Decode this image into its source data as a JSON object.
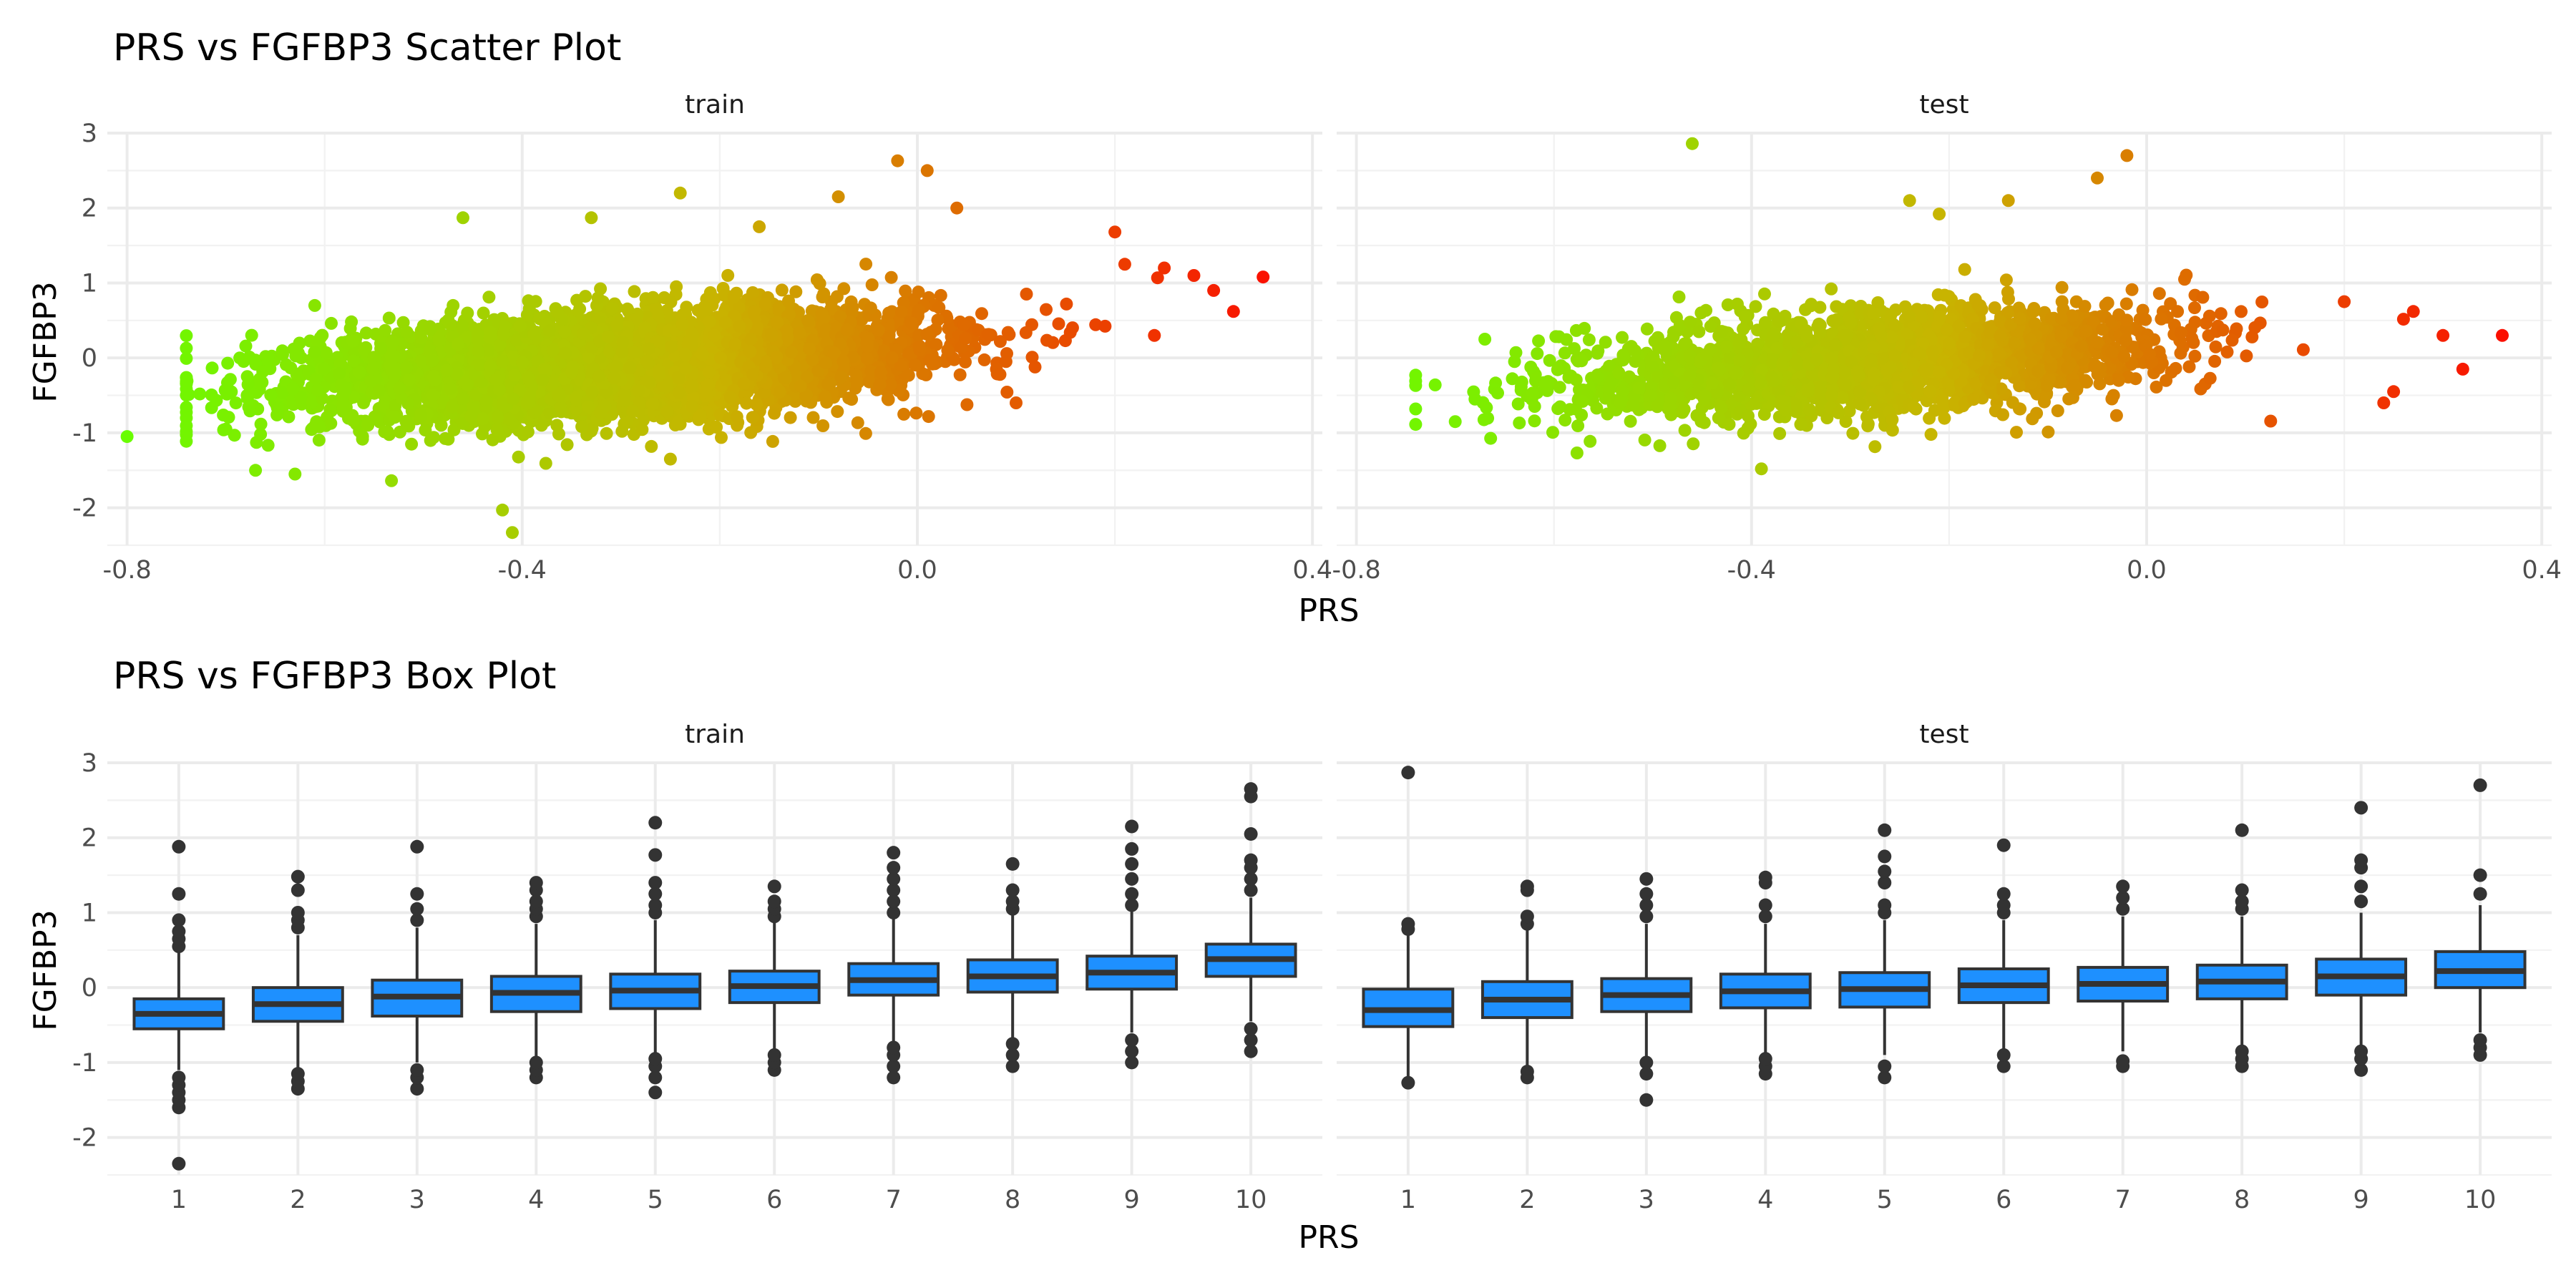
{
  "chart_data": [
    {
      "type": "scatter",
      "title": "PRS vs FGFBP3 Scatter Plot",
      "xlabel": "PRS",
      "ylabel": "FGFBP3",
      "xlim": [
        -0.82,
        0.41
      ],
      "ylim": [
        -2.5,
        3.0
      ],
      "x_ticks": [
        -0.8,
        -0.4,
        0.0,
        0.4
      ],
      "x_tick_labels": [
        "-0.8",
        "-0.4",
        "0.0",
        "0.4"
      ],
      "y_ticks": [
        -2,
        -1,
        0,
        1,
        2,
        3
      ],
      "y_tick_labels": [
        "-2",
        "-1",
        "0",
        "1",
        "2",
        "3"
      ],
      "grid": true,
      "legend": "none",
      "color_gradient": {
        "low": "#66ff00",
        "mid": "#c8b400",
        "high": "#ff0000",
        "encodes": "x"
      },
      "trend": {
        "intercept": 0.16,
        "slope": 0.78
      },
      "panels": [
        {
          "name": "train",
          "n_points": 5200,
          "cloud": {
            "x_mean": -0.3,
            "x_sd": 0.15,
            "y_sd": 0.33
          },
          "points": [
            {
              "x": -0.8,
              "y": -1.05
            },
            {
              "x": -0.74,
              "y": -0.8
            },
            {
              "x": -0.7,
              "y": -0.95
            },
            {
              "x": -0.67,
              "y": -1.5
            },
            {
              "x": -0.63,
              "y": -1.55
            },
            {
              "x": -0.61,
              "y": 0.7
            },
            {
              "x": -0.46,
              "y": 1.87
            },
            {
              "x": -0.41,
              "y": -2.33
            },
            {
              "x": -0.42,
              "y": -2.03
            },
            {
              "x": -0.33,
              "y": 1.87
            },
            {
              "x": -0.24,
              "y": 2.2
            },
            {
              "x": -0.25,
              "y": -1.35
            },
            {
              "x": -0.16,
              "y": 1.75
            },
            {
              "x": -0.08,
              "y": 2.15
            },
            {
              "x": -0.02,
              "y": 2.63
            },
            {
              "x": 0.01,
              "y": 2.5
            },
            {
              "x": 0.04,
              "y": 2.0
            },
            {
              "x": 0.1,
              "y": -0.6
            },
            {
              "x": 0.2,
              "y": 1.68
            },
            {
              "x": 0.21,
              "y": 1.25
            },
            {
              "x": 0.25,
              "y": 1.2
            },
            {
              "x": 0.24,
              "y": 0.3
            },
            {
              "x": 0.28,
              "y": 1.1
            },
            {
              "x": 0.3,
              "y": 0.9
            },
            {
              "x": 0.32,
              "y": 0.62
            },
            {
              "x": 0.35,
              "y": 1.08
            }
          ]
        },
        {
          "name": "test",
          "n_points": 2300,
          "cloud": {
            "x_mean": -0.28,
            "x_sd": 0.15,
            "y_sd": 0.33
          },
          "points": [
            {
              "x": -0.74,
              "y": -0.23
            },
            {
              "x": -0.7,
              "y": -0.85
            },
            {
              "x": -0.68,
              "y": -0.55
            },
            {
              "x": -0.67,
              "y": 0.25
            },
            {
              "x": -0.46,
              "y": 2.86
            },
            {
              "x": -0.39,
              "y": -1.48
            },
            {
              "x": -0.24,
              "y": 2.1
            },
            {
              "x": -0.21,
              "y": 1.92
            },
            {
              "x": -0.14,
              "y": 2.1
            },
            {
              "x": -0.05,
              "y": 2.4
            },
            {
              "x": -0.02,
              "y": 2.7
            },
            {
              "x": 0.2,
              "y": 0.75
            },
            {
              "x": 0.24,
              "y": -0.6
            },
            {
              "x": 0.25,
              "y": -0.45
            },
            {
              "x": 0.27,
              "y": 0.62
            },
            {
              "x": 0.3,
              "y": 0.3
            },
            {
              "x": 0.32,
              "y": -0.15
            },
            {
              "x": 0.36,
              "y": 0.3
            }
          ]
        }
      ]
    },
    {
      "type": "box",
      "title": "PRS vs FGFBP3 Box Plot",
      "xlabel": "PRS",
      "ylabel": "FGFBP3",
      "categories": [
        "1",
        "2",
        "3",
        "4",
        "5",
        "6",
        "7",
        "8",
        "9",
        "10"
      ],
      "ylim": [
        -2.5,
        3.0
      ],
      "y_ticks": [
        -2,
        -1,
        0,
        1,
        2,
        3
      ],
      "y_tick_labels": [
        "-2",
        "-1",
        "0",
        "1",
        "2",
        "3"
      ],
      "grid": true,
      "legend": "none",
      "box_fill": "#1e90ff",
      "box_line": "#333333",
      "panels": [
        {
          "name": "train",
          "boxes": [
            {
              "q1": -0.55,
              "median": -0.35,
              "q3": -0.15,
              "lower": -1.1,
              "upper": 0.5,
              "outliers": [
                -2.35,
                -1.6,
                -1.5,
                -1.4,
                -1.3,
                -1.2,
                0.55,
                0.65,
                0.75,
                0.9,
                1.25,
                1.88
              ]
            },
            {
              "q1": -0.45,
              "median": -0.22,
              "q3": 0.0,
              "lower": -1.1,
              "upper": 0.7,
              "outliers": [
                -1.35,
                -1.25,
                -1.15,
                0.8,
                0.9,
                1.0,
                1.3,
                1.48
              ]
            },
            {
              "q1": -0.38,
              "median": -0.12,
              "q3": 0.1,
              "lower": -1.0,
              "upper": 0.8,
              "outliers": [
                -1.35,
                -1.2,
                -1.1,
                0.9,
                1.05,
                1.25,
                1.88
              ]
            },
            {
              "q1": -0.32,
              "median": -0.07,
              "q3": 0.15,
              "lower": -0.95,
              "upper": 0.85,
              "outliers": [
                -1.2,
                -1.1,
                -1.0,
                0.95,
                1.05,
                1.15,
                1.3,
                1.4
              ]
            },
            {
              "q1": -0.28,
              "median": -0.04,
              "q3": 0.18,
              "lower": -0.9,
              "upper": 0.9,
              "outliers": [
                -1.4,
                -1.2,
                -1.05,
                -0.95,
                1.0,
                1.1,
                1.25,
                1.4,
                1.77,
                2.2
              ]
            },
            {
              "q1": -0.2,
              "median": 0.02,
              "q3": 0.22,
              "lower": -0.85,
              "upper": 0.9,
              "outliers": [
                -1.1,
                -1.0,
                -0.9,
                0.95,
                1.05,
                1.15,
                1.35
              ]
            },
            {
              "q1": -0.1,
              "median": 0.1,
              "q3": 0.32,
              "lower": -0.75,
              "upper": 0.95,
              "outliers": [
                -1.2,
                -1.05,
                -0.9,
                -0.8,
                1.0,
                1.15,
                1.3,
                1.45,
                1.6,
                1.8
              ]
            },
            {
              "q1": -0.06,
              "median": 0.15,
              "q3": 0.37,
              "lower": -0.7,
              "upper": 1.0,
              "outliers": [
                -1.05,
                -0.9,
                -0.75,
                1.05,
                1.15,
                1.3,
                1.65
              ]
            },
            {
              "q1": -0.02,
              "median": 0.2,
              "q3": 0.42,
              "lower": -0.6,
              "upper": 1.05,
              "outliers": [
                -1.0,
                -0.85,
                -0.7,
                1.1,
                1.25,
                1.45,
                1.65,
                1.85,
                2.15
              ]
            },
            {
              "q1": 0.15,
              "median": 0.38,
              "q3": 0.58,
              "lower": -0.45,
              "upper": 1.2,
              "outliers": [
                -0.85,
                -0.7,
                -0.55,
                1.3,
                1.45,
                1.6,
                1.7,
                2.05,
                2.55,
                2.65
              ]
            }
          ]
        },
        {
          "name": "test",
          "boxes": [
            {
              "q1": -0.52,
              "median": -0.3,
              "q3": -0.02,
              "lower": -1.2,
              "upper": 0.7,
              "outliers": [
                -1.27,
                0.78,
                0.85,
                2.87
              ]
            },
            {
              "q1": -0.4,
              "median": -0.16,
              "q3": 0.08,
              "lower": -1.05,
              "upper": 0.8,
              "outliers": [
                -1.2,
                -1.12,
                0.85,
                0.95,
                1.3,
                1.35
              ]
            },
            {
              "q1": -0.32,
              "median": -0.1,
              "q3": 0.12,
              "lower": -0.95,
              "upper": 0.85,
              "outliers": [
                -1.5,
                -1.15,
                -1.0,
                0.95,
                1.1,
                1.25,
                1.45
              ]
            },
            {
              "q1": -0.27,
              "median": -0.05,
              "q3": 0.18,
              "lower": -0.9,
              "upper": 0.85,
              "outliers": [
                -1.15,
                -1.05,
                -0.95,
                0.95,
                1.1,
                1.4,
                1.47
              ]
            },
            {
              "q1": -0.26,
              "median": -0.02,
              "q3": 0.2,
              "lower": -0.9,
              "upper": 0.9,
              "outliers": [
                -1.2,
                -1.05,
                1.0,
                1.1,
                1.4,
                1.55,
                1.75,
                2.1
              ]
            },
            {
              "q1": -0.2,
              "median": 0.03,
              "q3": 0.25,
              "lower": -0.85,
              "upper": 0.9,
              "outliers": [
                -1.05,
                -0.9,
                1.0,
                1.1,
                1.25,
                1.9
              ]
            },
            {
              "q1": -0.18,
              "median": 0.05,
              "q3": 0.27,
              "lower": -0.85,
              "upper": 0.95,
              "outliers": [
                -1.05,
                -0.98,
                1.05,
                1.2,
                1.35
              ]
            },
            {
              "q1": -0.15,
              "median": 0.08,
              "q3": 0.3,
              "lower": -0.8,
              "upper": 0.95,
              "outliers": [
                -1.05,
                -0.95,
                -0.85,
                1.05,
                1.15,
                1.3,
                2.1
              ]
            },
            {
              "q1": -0.1,
              "median": 0.15,
              "q3": 0.38,
              "lower": -0.78,
              "upper": 1.0,
              "outliers": [
                -1.1,
                -0.95,
                -0.85,
                1.15,
                1.35,
                1.6,
                1.7,
                2.4
              ]
            },
            {
              "q1": 0.0,
              "median": 0.22,
              "q3": 0.48,
              "lower": -0.6,
              "upper": 1.1,
              "outliers": [
                -0.9,
                -0.8,
                -0.7,
                1.25,
                1.5,
                2.7
              ]
            }
          ]
        }
      ]
    }
  ]
}
